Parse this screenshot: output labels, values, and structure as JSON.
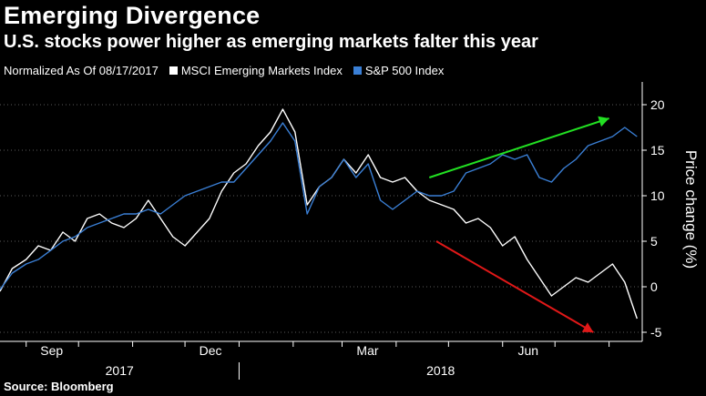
{
  "title": "Emerging Divergence",
  "subtitle": "U.S. stocks power higher as emerging markets falter this year",
  "legend": {
    "normalized": "Normalized As Of 08/17/2017",
    "msci": "MSCI Emerging Markets Index",
    "sp500": "S&P 500 Index"
  },
  "source": "Source: Bloomberg",
  "colors": {
    "msci": "#ffffff",
    "sp500": "#3a7fd5",
    "green_arrow": "#22e022",
    "red_arrow": "#e01818",
    "background": "#000000"
  },
  "chart_data": {
    "type": "line",
    "ylabel": "Price change (%)",
    "ylim": [
      -6,
      22
    ],
    "yticks": [
      20,
      15,
      10,
      5,
      0,
      -5
    ],
    "x_ticks": [
      "Sep",
      "Dec",
      "Mar",
      "Jun"
    ],
    "x_years": [
      "2017",
      "2018"
    ],
    "x_range": [
      "2017-08-17",
      "2018-08-20"
    ],
    "series": [
      {
        "name": "MSCI Emerging Markets Index",
        "x": [
          "2017-08-17",
          "2017-08-24",
          "2017-09-01",
          "2017-09-08",
          "2017-09-15",
          "2017-09-22",
          "2017-09-29",
          "2017-10-06",
          "2017-10-13",
          "2017-10-20",
          "2017-10-27",
          "2017-11-03",
          "2017-11-10",
          "2017-11-17",
          "2017-11-24",
          "2017-12-01",
          "2017-12-08",
          "2017-12-15",
          "2017-12-22",
          "2017-12-29",
          "2018-01-05",
          "2018-01-12",
          "2018-01-19",
          "2018-01-26",
          "2018-02-02",
          "2018-02-09",
          "2018-02-16",
          "2018-02-23",
          "2018-03-02",
          "2018-03-09",
          "2018-03-16",
          "2018-03-23",
          "2018-03-30",
          "2018-04-06",
          "2018-04-13",
          "2018-04-20",
          "2018-04-27",
          "2018-05-04",
          "2018-05-11",
          "2018-05-18",
          "2018-05-25",
          "2018-06-01",
          "2018-06-08",
          "2018-06-15",
          "2018-06-22",
          "2018-06-29",
          "2018-07-06",
          "2018-07-13",
          "2018-07-20",
          "2018-07-27",
          "2018-08-03",
          "2018-08-10",
          "2018-08-17"
        ],
        "values": [
          -0.5,
          2.0,
          3.0,
          4.5,
          4.0,
          6.0,
          5.0,
          7.5,
          8.0,
          7.0,
          6.5,
          7.5,
          9.5,
          7.5,
          5.5,
          4.5,
          6.0,
          7.5,
          10.5,
          12.5,
          13.5,
          15.5,
          17.0,
          19.5,
          17.0,
          9.0,
          11.0,
          12.0,
          14.0,
          12.5,
          14.5,
          12.0,
          11.5,
          12.0,
          10.5,
          9.5,
          9.0,
          8.5,
          7.0,
          7.5,
          6.5,
          4.5,
          5.5,
          3.0,
          1.0,
          -1.0,
          0.0,
          1.0,
          0.5,
          1.5,
          2.5,
          0.5,
          -3.5
        ]
      },
      {
        "name": "S&P 500 Index",
        "x": [
          "2017-08-17",
          "2017-08-24",
          "2017-09-01",
          "2017-09-08",
          "2017-09-15",
          "2017-09-22",
          "2017-09-29",
          "2017-10-06",
          "2017-10-13",
          "2017-10-20",
          "2017-10-27",
          "2017-11-03",
          "2017-11-10",
          "2017-11-17",
          "2017-11-24",
          "2017-12-01",
          "2017-12-08",
          "2017-12-15",
          "2017-12-22",
          "2017-12-29",
          "2018-01-05",
          "2018-01-12",
          "2018-01-19",
          "2018-01-26",
          "2018-02-02",
          "2018-02-09",
          "2018-02-16",
          "2018-02-23",
          "2018-03-02",
          "2018-03-09",
          "2018-03-16",
          "2018-03-23",
          "2018-03-30",
          "2018-04-06",
          "2018-04-13",
          "2018-04-20",
          "2018-04-27",
          "2018-05-04",
          "2018-05-11",
          "2018-05-18",
          "2018-05-25",
          "2018-06-01",
          "2018-06-08",
          "2018-06-15",
          "2018-06-22",
          "2018-06-29",
          "2018-07-06",
          "2018-07-13",
          "2018-07-20",
          "2018-07-27",
          "2018-08-03",
          "2018-08-10",
          "2018-08-17"
        ],
        "values": [
          -0.3,
          1.5,
          2.5,
          3.0,
          4.0,
          5.0,
          5.5,
          6.5,
          7.0,
          7.5,
          8.0,
          8.0,
          8.5,
          8.0,
          9.0,
          10.0,
          10.5,
          11.0,
          11.5,
          11.5,
          13.0,
          14.5,
          16.0,
          18.0,
          16.0,
          8.0,
          11.0,
          12.0,
          14.0,
          12.0,
          13.5,
          9.5,
          8.5,
          9.5,
          10.5,
          10.0,
          10.0,
          10.5,
          12.5,
          13.0,
          13.5,
          14.5,
          14.0,
          14.5,
          12.0,
          11.5,
          13.0,
          14.0,
          15.5,
          16.0,
          16.5,
          17.5,
          16.5
        ]
      }
    ],
    "annotations": [
      {
        "type": "arrow",
        "color": "green",
        "from": [
          "2018-04-20",
          12
        ],
        "to": [
          "2018-08-01",
          18.5
        ]
      },
      {
        "type": "arrow",
        "color": "red",
        "from": [
          "2018-04-24",
          5
        ],
        "to": [
          "2018-07-23",
          -5
        ]
      }
    ]
  }
}
